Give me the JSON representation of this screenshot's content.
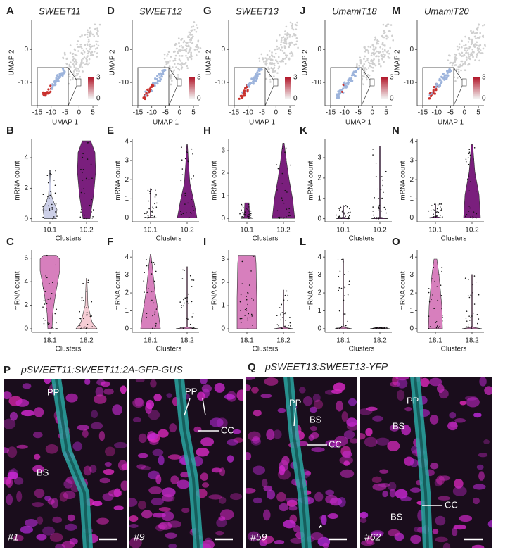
{
  "umap_axes": {
    "x_label": "UMAP 1",
    "y_label": "UMAP 2",
    "xticks": [
      -15,
      -10,
      -5,
      0,
      5
    ],
    "yticks": [
      0,
      -10
    ],
    "xlim": [
      -17,
      7
    ],
    "ylim": [
      -17,
      9
    ],
    "colorbar_ticks": [
      3,
      0
    ]
  },
  "umap_panels": [
    {
      "letter": "A",
      "gene": "SWEET11"
    },
    {
      "letter": "D",
      "gene": "SWEET12"
    },
    {
      "letter": "G",
      "gene": "SWEET13"
    },
    {
      "letter": "J",
      "gene": "UmamiT18"
    },
    {
      "letter": "M",
      "gene": "UmamiT20"
    }
  ],
  "violin_axes": {
    "y_label": "mRNA count",
    "x_label": "Clusters"
  },
  "violin_panels": [
    {
      "letter": "B",
      "categories": [
        "10.1",
        "10.2"
      ],
      "yticks": [
        0,
        2,
        4
      ],
      "ylim": [
        -0.2,
        5.2
      ],
      "colors": [
        "#cdd0e8",
        "#7a1f7d"
      ]
    },
    {
      "letter": "E",
      "categories": [
        "10.1",
        "10.2"
      ],
      "yticks": [
        0,
        1,
        2,
        3,
        4
      ],
      "ylim": [
        -0.2,
        4.1
      ],
      "colors": [
        "#7a1f7d",
        "#7a1f7d"
      ]
    },
    {
      "letter": "H",
      "categories": [
        "10.1",
        "10.2"
      ],
      "yticks": [
        0,
        1,
        2,
        3
      ],
      "ylim": [
        -0.15,
        3.5
      ],
      "colors": [
        "#7a1f7d",
        "#7a1f7d"
      ]
    },
    {
      "letter": "K",
      "categories": [
        "10.1",
        "10.2"
      ],
      "yticks": [
        0,
        1,
        2,
        3
      ],
      "ylim": [
        -0.15,
        3.9
      ],
      "colors": [
        "#7a1f7d",
        "#7a1f7d"
      ]
    },
    {
      "letter": "N",
      "categories": [
        "10.1",
        "10.2"
      ],
      "yticks": [
        0,
        1,
        2,
        3,
        4
      ],
      "ylim": [
        -0.2,
        4.1
      ],
      "colors": [
        "#7a1f7d",
        "#7a1f7d"
      ]
    },
    {
      "letter": "C",
      "categories": [
        "18.1",
        "18.2"
      ],
      "yticks": [
        0,
        2,
        4,
        6
      ],
      "ylim": [
        -0.3,
        6.7
      ],
      "colors": [
        "#d77fbd",
        "#f6cdd5"
      ]
    },
    {
      "letter": "F",
      "categories": [
        "18.1",
        "18.2"
      ],
      "yticks": [
        0,
        1,
        2,
        3,
        4
      ],
      "ylim": [
        -0.2,
        4.4
      ],
      "colors": [
        "#d77fbd",
        "#d77fbd"
      ]
    },
    {
      "letter": "I",
      "categories": [
        "18.1",
        "18.2"
      ],
      "yticks": [
        0,
        1,
        2,
        3
      ],
      "ylim": [
        -0.15,
        3.4
      ],
      "colors": [
        "#d77fbd",
        "#d77fbd"
      ]
    },
    {
      "letter": "L",
      "categories": [
        "18.1",
        "18.2"
      ],
      "yticks": [
        0,
        1,
        2,
        3,
        4
      ],
      "ylim": [
        -0.2,
        4.4
      ],
      "colors": [
        "#d77fbd",
        "#d77fbd"
      ]
    },
    {
      "letter": "O",
      "categories": [
        "18.1",
        "18.2"
      ],
      "yticks": [
        0,
        1,
        2,
        3,
        4
      ],
      "ylim": [
        -0.2,
        4.4
      ],
      "colors": [
        "#d77fbd",
        "#d77fbd"
      ]
    }
  ],
  "micrographs": [
    {
      "letter": "P",
      "title": "pSWEET11:SWEET11:2A-GFP-GUS",
      "images": [
        {
          "id": "#1",
          "labels": [
            "PP",
            "BS"
          ]
        },
        {
          "id": "#9",
          "labels": [
            "PP",
            "CC"
          ]
        }
      ]
    },
    {
      "letter": "Q",
      "title": "pSWEET13:SWEET13-YFP",
      "images": [
        {
          "id": "#59",
          "labels": [
            "PP",
            "BS",
            "CC",
            "*"
          ]
        },
        {
          "id": "#62",
          "labels": [
            "PP",
            "BS",
            "BS",
            "CC"
          ]
        }
      ]
    }
  ]
}
